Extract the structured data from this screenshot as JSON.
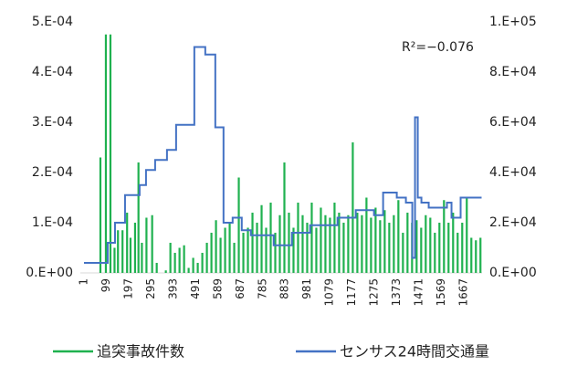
{
  "chart_data": {
    "type": "combo",
    "annotation": "R²=−0.076",
    "xlim": [
      -15,
      1747
    ],
    "xticks": [
      1,
      99,
      197,
      295,
      393,
      491,
      589,
      687,
      785,
      883,
      981,
      1079,
      1177,
      1275,
      1373,
      1471,
      1569,
      1667
    ],
    "ylim": [
      0,
      0.0005
    ],
    "yticks": [
      {
        "value": 0,
        "label": "0.E+00"
      },
      {
        "value": 0.0001,
        "label": "1.E-04"
      },
      {
        "value": 0.0002,
        "label": "2.E-04"
      },
      {
        "value": 0.0003,
        "label": "3.E-04"
      },
      {
        "value": 0.0004,
        "label": "4.E-04"
      },
      {
        "value": 0.0005,
        "label": "5.E-04"
      }
    ],
    "y2lim": [
      0,
      100000
    ],
    "y2ticks": [
      {
        "value": 0,
        "label": "0.E+00"
      },
      {
        "value": 20000,
        "label": "2.E+04"
      },
      {
        "value": 40000,
        "label": "4.E+04"
      },
      {
        "value": 60000,
        "label": "6.E+04"
      },
      {
        "value": 80000,
        "label": "8.E+04"
      },
      {
        "value": 100000,
        "label": "1.E+05"
      }
    ],
    "legend": "bottom",
    "series": [
      {
        "name": "追突事故件数",
        "color": "#1fb14f",
        "type": "spike",
        "x": [
          1,
          21,
          41,
          61,
          73,
          85,
          97,
          109,
          117,
          135,
          150,
          170,
          190,
          205,
          225,
          240,
          255,
          275,
          300,
          320,
          345,
          360,
          380,
          400,
          420,
          440,
          460,
          480,
          500,
          520,
          540,
          560,
          580,
          600,
          620,
          640,
          660,
          680,
          700,
          720,
          740,
          760,
          780,
          800,
          820,
          840,
          860,
          880,
          900,
          920,
          940,
          960,
          980,
          1000,
          1020,
          1040,
          1060,
          1080,
          1100,
          1120,
          1140,
          1160,
          1180,
          1200,
          1220,
          1240,
          1260,
          1280,
          1300,
          1320,
          1340,
          1360,
          1380,
          1400,
          1420,
          1440,
          1460,
          1480,
          1500,
          1520,
          1540,
          1560,
          1580,
          1600,
          1620,
          1640,
          1660,
          1680,
          1700,
          1720,
          1740
        ],
        "values": [
          0,
          0,
          0,
          0,
          0.00023,
          0,
          0.000475,
          0,
          0.000475,
          5e-05,
          8.5e-05,
          8.5e-05,
          0.00012,
          7e-05,
          0.0001,
          0.00022,
          6e-05,
          0.00011,
          0.000115,
          2e-05,
          0,
          5e-06,
          6e-05,
          4e-05,
          5e-05,
          5.5e-05,
          1e-05,
          3e-05,
          2e-05,
          4e-05,
          6e-05,
          8e-05,
          0.000105,
          7e-05,
          9e-05,
          0.0001,
          6e-05,
          0.00019,
          8e-05,
          9e-05,
          0.00012,
          0.0001,
          0.000135,
          9e-05,
          0.00014,
          8e-05,
          0.000115,
          0.00022,
          0.00012,
          9e-05,
          0.00014,
          0.000115,
          0.0001,
          0.00014,
          9e-05,
          0.00013,
          0.000115,
          0.00011,
          0.00014,
          0.00012,
          0.0001,
          0.000115,
          0.00026,
          0.00012,
          0.000115,
          0.00015,
          0.00011,
          0.00013,
          0.000105,
          0.000125,
          0.0001,
          0.000115,
          0.000145,
          8e-05,
          0.00012,
          0.0001,
          0.000105,
          9e-05,
          0.000115,
          0.00011,
          8e-05,
          0.0001,
          0.000145,
          0.0001,
          0.00012,
          8e-05,
          0.0001,
          0.00015,
          7e-05,
          6.5e-05,
          7e-05
        ]
      },
      {
        "name": "センサス24時間交通量",
        "color": "#4472c4",
        "type": "step",
        "axis": "y2",
        "x": [
          1,
          105,
          137,
          181,
          245,
          273,
          313,
          365,
          405,
          485,
          533,
          577,
          613,
          653,
          693,
          733,
          833,
          913,
          993,
          1113,
          1193,
          1273,
          1313,
          1373,
          1413,
          1441,
          1453,
          1465,
          1481,
          1513,
          1593,
          1613,
          1653,
          1745
        ],
        "values": [
          4000,
          12000,
          20000,
          31000,
          35000,
          41000,
          45000,
          49000,
          59000,
          90000,
          87000,
          58000,
          20000,
          22000,
          17000,
          15000,
          11000,
          16000,
          19000,
          22000,
          25000,
          23000,
          32000,
          30000,
          28000,
          6000,
          62000,
          30000,
          28000,
          26000,
          28000,
          22000,
          30000,
          30000
        ]
      }
    ]
  }
}
